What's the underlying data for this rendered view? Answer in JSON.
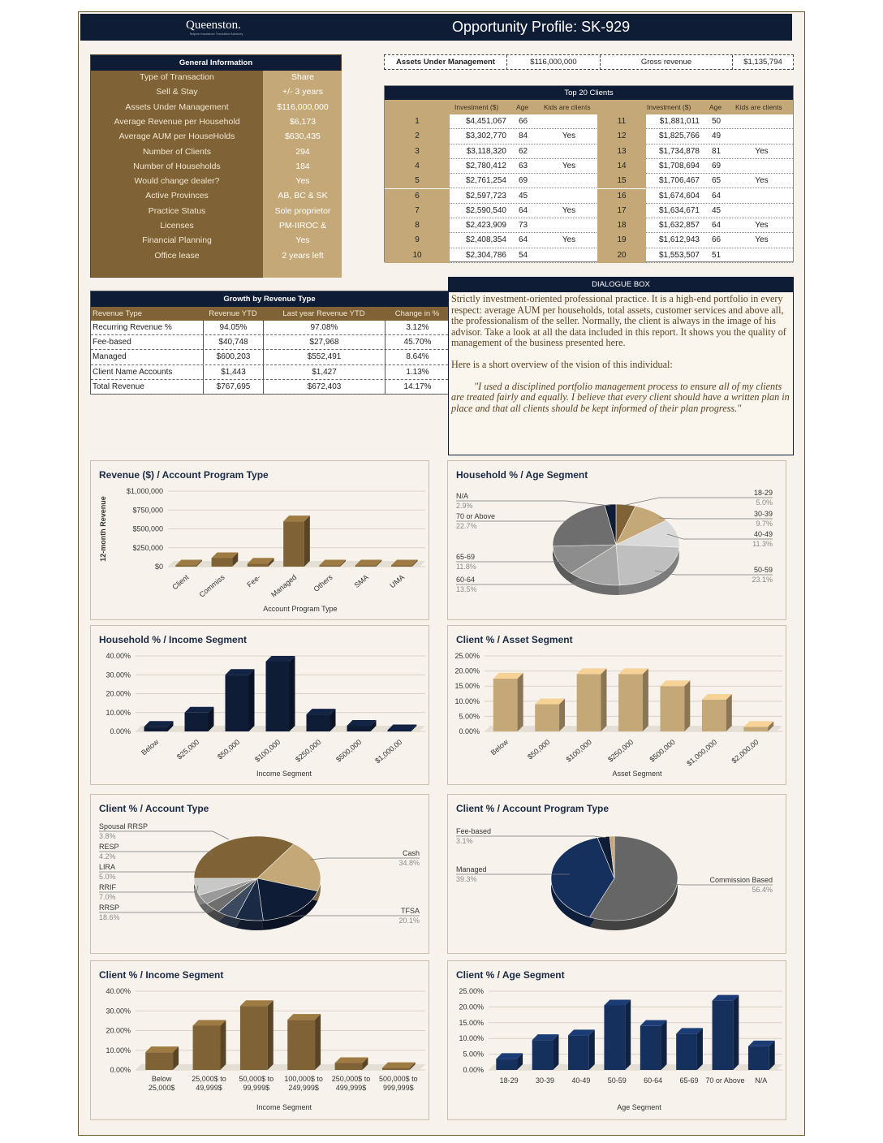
{
  "header": {
    "logo": "Queenston.",
    "logo_sub": "Majors Insurance Transition Advisory",
    "title": "Opportunity Profile: SK-929"
  },
  "general": {
    "title": "General Information",
    "rows": [
      {
        "label": "Type of Transaction",
        "value": "Share"
      },
      {
        "label": "Sell & Stay",
        "value": "+/- 3 years"
      },
      {
        "label": "Assets Under Management",
        "value": "$116,000,000"
      },
      {
        "label": "Average Revenue per Household",
        "value": "$6,173"
      },
      {
        "label": "Average AUM per HouseHolds",
        "value": "$630,435"
      },
      {
        "label": "Number of Clients",
        "value": "294"
      },
      {
        "label": "Number of Households",
        "value": "184"
      },
      {
        "label": "Would change dealer?",
        "value": "Yes"
      },
      {
        "label": "Active Provinces",
        "value": "AB, BC & SK"
      },
      {
        "label": "Practice Status",
        "value": "Sole proprietor"
      },
      {
        "label": "Licenses",
        "value": "PM-IIROC &"
      },
      {
        "label": "Financial Planning",
        "value": "Yes"
      },
      {
        "label": "Office lease",
        "value": "2 years left"
      }
    ]
  },
  "aum": {
    "label": "Assets Under Management",
    "value": "$116,000,000",
    "gross_label": "Gross revenue",
    "gross_value": "$1,135,794"
  },
  "top20": {
    "title": "Top  20 Clients",
    "h_inv": "Investment ($)",
    "h_age": "Age",
    "h_kids": "Kids are clients",
    "rows": [
      {
        "r": "1",
        "inv": "$4,451,067",
        "age": "66",
        "kids": "",
        "r2": "11",
        "inv2": "$1,881,011",
        "age2": "50",
        "kids2": ""
      },
      {
        "r": "2",
        "inv": "$3,302,770",
        "age": "84",
        "kids": "Yes",
        "r2": "12",
        "inv2": "$1,825,766",
        "age2": "49",
        "kids2": ""
      },
      {
        "r": "3",
        "inv": "$3,118,320",
        "age": "62",
        "kids": "",
        "r2": "13",
        "inv2": "$1,734,878",
        "age2": "81",
        "kids2": "Yes"
      },
      {
        "r": "4",
        "inv": "$2,780,412",
        "age": "63",
        "kids": "Yes",
        "r2": "14",
        "inv2": "$1,708,694",
        "age2": "69",
        "kids2": ""
      },
      {
        "r": "5",
        "inv": "$2,761,254",
        "age": "69",
        "kids": "",
        "r2": "15",
        "inv2": "$1,706,467",
        "age2": "65",
        "kids2": "Yes"
      },
      {
        "r": "6",
        "inv": "$2,597,723",
        "age": "45",
        "kids": "",
        "r2": "16",
        "inv2": "$1,674,604",
        "age2": "64",
        "kids2": ""
      },
      {
        "r": "7",
        "inv": "$2,590,540",
        "age": "64",
        "kids": "Yes",
        "r2": "17",
        "inv2": "$1,634,671",
        "age2": "45",
        "kids2": ""
      },
      {
        "r": "8",
        "inv": "$2,423,909",
        "age": "73",
        "kids": "",
        "r2": "18",
        "inv2": "$1,632,857",
        "age2": "64",
        "kids2": "Yes"
      },
      {
        "r": "9",
        "inv": "$2,408,354",
        "age": "64",
        "kids": "Yes",
        "r2": "19",
        "inv2": "$1,612,943",
        "age2": "66",
        "kids2": "Yes"
      },
      {
        "r": "10",
        "inv": "$2,304,786",
        "age": "54",
        "kids": "",
        "r2": "20",
        "inv2": "$1,553,507",
        "age2": "51",
        "kids2": ""
      }
    ]
  },
  "growth": {
    "title": "Growth by Revenue Type",
    "headers": [
      "Revenue Type",
      "Revenue YTD",
      "Last year Revenue YTD",
      "Change in %"
    ],
    "rows": [
      [
        "Recurring Revenue %",
        "94.05%",
        "97.08%",
        "3.12%"
      ],
      [
        "Fee-based",
        "$40,748",
        "$27,968",
        "45.70%"
      ],
      [
        "Managed",
        "$600,203",
        "$552,491",
        "8.64%"
      ],
      [
        "Client Name Accounts",
        "$1,443",
        "$1,427",
        "1.13%"
      ],
      [
        "Total Revenue",
        "$767,695",
        "$672,403",
        "14.17%"
      ]
    ]
  },
  "dialogue": {
    "title": "DIALOGUE BOX",
    "p1": "Strictly investment-oriented professional practice. It is a high-end portfolio in every respect: average AUM per households, total assets, customer services and above all, the professionalism of the seller. Normally, the client is always in the image of his advisor. Take a look at all the data included in this report. It shows you the quality of management of the business presented here.",
    "p2": "Here is a short overview of the vision of this individual:",
    "quote": "\"I used a disciplined portfolio management process to ensure all of my clients are treated fairly and equally. I believe that every client should have a written plan in place and that all clients should be kept informed of their plan progress.\""
  },
  "chart_data": [
    {
      "id": "rev",
      "type": "bar",
      "title": "Revenue ($) / Account Program Type",
      "xlabel": "Account Program Type",
      "ylabel": "12-month Revenue",
      "categories": [
        "Client",
        "Commiss",
        "Fee-",
        "Managed",
        "Others",
        "SMA",
        "UMA"
      ],
      "values": [
        0,
        113000,
        40748,
        600203,
        0,
        0,
        0
      ],
      "yticks": [
        "$1,000,000",
        "$750,000",
        "$500,000",
        "$250,000",
        "$0"
      ],
      "ylim": [
        0,
        1000000
      ],
      "color": "#7f6236"
    },
    {
      "id": "hhage",
      "type": "pie",
      "title": "Household % / Age Segment",
      "slices": [
        {
          "name": "18-29",
          "value": 5.0,
          "color": "#7f6236"
        },
        {
          "name": "30-39",
          "value": 9.7,
          "color": "#c5a878"
        },
        {
          "name": "40-49",
          "value": 11.3,
          "color": "#d9d9d9"
        },
        {
          "name": "50-59",
          "value": 23.1,
          "color": "#bfbfbf"
        },
        {
          "name": "60-64",
          "value": 13.5,
          "color": "#a6a6a6"
        },
        {
          "name": "65-69",
          "value": 11.8,
          "color": "#8c8c8c"
        },
        {
          "name": "70 or Above",
          "value": 22.7,
          "color": "#6e6e6e"
        },
        {
          "name": "N/A",
          "value": 2.9,
          "color": "#0f1c36"
        }
      ],
      "labels": [
        {
          "name": "N/A",
          "pct": "2.9%"
        },
        {
          "name": "70 or Above",
          "pct": "22.7%"
        },
        {
          "name": "65-69",
          "pct": "11.8%"
        },
        {
          "name": "60-64",
          "pct": "13.5%"
        },
        {
          "name": "18-29",
          "pct": "5.0%"
        },
        {
          "name": "30-39",
          "pct": "9.7%"
        },
        {
          "name": "40-49",
          "pct": "11.3%"
        },
        {
          "name": "50-59",
          "pct": "23.1%"
        }
      ]
    },
    {
      "id": "hhinc",
      "type": "bar",
      "title": "Household % / Income Segment",
      "xlabel": "Income Segment",
      "categories": [
        "Below",
        "$25,000",
        "$50,000",
        "$100,000",
        "$250,000",
        "$500,000",
        "$1,000,00"
      ],
      "values": [
        2.5,
        10,
        30,
        37,
        9,
        3,
        0.5
      ],
      "yticks": [
        "40.00%",
        "30.00%",
        "20.00%",
        "10.00%",
        "0.00%"
      ],
      "ylim": [
        0,
        40
      ],
      "color": "#0f1c36"
    },
    {
      "id": "asset",
      "type": "bar",
      "title": "Client % / Asset Segment",
      "xlabel": "Asset Segment",
      "categories": [
        "Below",
        "$50,000",
        "$100,000",
        "$250,000",
        "$500,000",
        "$1,000,000",
        "$2,000,00"
      ],
      "values": [
        17.5,
        9,
        19,
        19,
        15,
        10.5,
        1.5
      ],
      "yticks": [
        "25.00%",
        "20.00%",
        "15.00%",
        "10.00%",
        "5.00%",
        "0.00%"
      ],
      "ylim": [
        0,
        25
      ],
      "color": "#c5a878"
    },
    {
      "id": "acct",
      "type": "pie",
      "title": "Client % / Account Type",
      "slices": [
        {
          "name": "Cash",
          "value": 34.8,
          "color": "#7f6236"
        },
        {
          "name": "TFSA",
          "value": 20.1,
          "color": "#c5a878"
        },
        {
          "name": "RRSP",
          "value": 18.6,
          "color": "#0f1c36"
        },
        {
          "name": "RRIF",
          "value": 7.0,
          "color": "#1b2a44"
        },
        {
          "name": "LIRA",
          "value": 5.0,
          "color": "#3c4a60"
        },
        {
          "name": "RESP",
          "value": 4.2,
          "color": "#6e6e6e"
        },
        {
          "name": "Spousal RRSP",
          "value": 3.8,
          "color": "#9a9a9a"
        },
        {
          "name": "Other",
          "value": 6.5,
          "color": "#c8c8c8"
        }
      ],
      "labels": [
        {
          "name": "Spousal RRSP",
          "pct": "3.8%"
        },
        {
          "name": "RESP",
          "pct": "4.2%"
        },
        {
          "name": "LIRA",
          "pct": "5.0%"
        },
        {
          "name": "RRIF",
          "pct": "7.0%"
        },
        {
          "name": "RRSP",
          "pct": "18.6%"
        },
        {
          "name": "Cash",
          "pct": "34.8%"
        },
        {
          "name": "TFSA",
          "pct": "20.1%"
        }
      ]
    },
    {
      "id": "prog",
      "type": "pie",
      "title": "Client % / Account Program Type",
      "slices": [
        {
          "name": "Commission Based",
          "value": 56.4,
          "color": "#666666"
        },
        {
          "name": "Managed",
          "value": 39.3,
          "color": "#16305e"
        },
        {
          "name": "Fee-based",
          "value": 3.1,
          "color": "#0f1c36"
        },
        {
          "name": "Other",
          "value": 1.2,
          "color": "#c5a878"
        }
      ],
      "labels": [
        {
          "name": "Fee-based",
          "pct": "3.1%"
        },
        {
          "name": "Managed",
          "pct": "39.3%"
        },
        {
          "name": "Commission Based",
          "pct": "56.4%"
        }
      ]
    },
    {
      "id": "cinc",
      "type": "bar",
      "title": "Client % / Income Segment",
      "xlabel": "Income Segment",
      "categories": [
        "Below 25,000$",
        "25,000$ to 49,999$",
        "50,000$ to 99,999$",
        "100,000$ to 249,999$",
        "250,000$ to 499,999$",
        "500,000$ to 999,999$"
      ],
      "values": [
        9,
        22.5,
        32.5,
        25.5,
        3.5,
        1
      ],
      "yticks": [
        "40.00%",
        "30.00%",
        "20.00%",
        "10.00%",
        "0.00%"
      ],
      "ylim": [
        0,
        40
      ],
      "color": "#7f6236"
    },
    {
      "id": "cage",
      "type": "bar",
      "title": "Client % / Age Segment",
      "xlabel": "Age Segment",
      "categories": [
        "18-29",
        "30-39",
        "40-49",
        "50-59",
        "60-64",
        "65-69",
        "70 or Above",
        "N/A"
      ],
      "values": [
        3.5,
        9.5,
        11,
        20.5,
        14,
        11.5,
        22,
        7.5
      ],
      "yticks": [
        "25.00%",
        "20.00%",
        "15.00%",
        "10.00%",
        "5.00%",
        "0.00%"
      ],
      "ylim": [
        0,
        25
      ],
      "color": "#16305e"
    }
  ]
}
